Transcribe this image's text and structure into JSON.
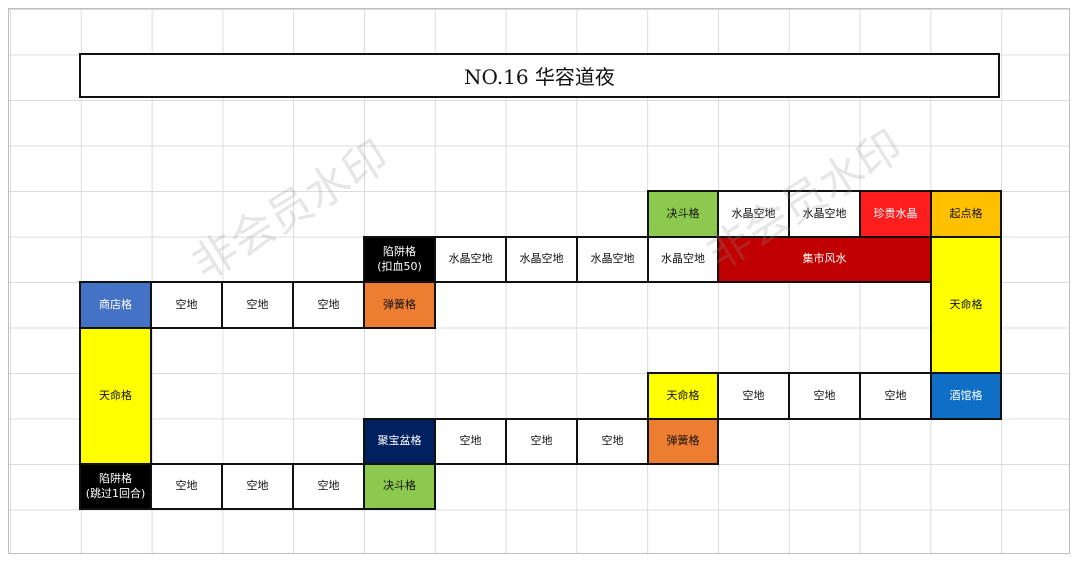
{
  "title": "NO.16 华容道夜",
  "watermark": "非会员水印",
  "colors": {
    "white": "#ffffff",
    "black": "#000000",
    "green": "#8dc94e",
    "red": "#ff1d1d",
    "dark_red": "#c00000",
    "orange_gold": "#ffc000",
    "yellow": "#ffff00",
    "blue": "#4472c4",
    "orange": "#ed7d31",
    "navy": "#002060",
    "tavern_blue": "#0f6fc6"
  },
  "cells": [
    {
      "text": "决斗格",
      "color": "green"
    },
    {
      "text": "水晶空地",
      "color": "white"
    },
    {
      "text": "水晶空地",
      "color": "white"
    },
    {
      "text": "珍贵水晶",
      "color": "red"
    },
    {
      "text": "起点格",
      "color": "orange_gold"
    },
    {
      "text": "陷阱格\n(扣血50)",
      "color": "black"
    },
    {
      "text": "水晶空地",
      "color": "white"
    },
    {
      "text": "水晶空地",
      "color": "white"
    },
    {
      "text": "水晶空地",
      "color": "white"
    },
    {
      "text": "水晶空地",
      "color": "white"
    },
    {
      "text": "集市风水",
      "color": "dark_red"
    },
    {
      "text": "天命格",
      "color": "yellow"
    },
    {
      "text": "商店格",
      "color": "blue"
    },
    {
      "text": "空地",
      "color": "white"
    },
    {
      "text": "空地",
      "color": "white"
    },
    {
      "text": "空地",
      "color": "white"
    },
    {
      "text": "弹簧格",
      "color": "orange"
    },
    {
      "text": "天命格",
      "color": "yellow"
    },
    {
      "text": "天命格",
      "color": "yellow"
    },
    {
      "text": "空地",
      "color": "white"
    },
    {
      "text": "空地",
      "color": "white"
    },
    {
      "text": "空地",
      "color": "white"
    },
    {
      "text": "酒馆格",
      "color": "tavern_blue"
    },
    {
      "text": "聚宝盆格",
      "color": "navy"
    },
    {
      "text": "空地",
      "color": "white"
    },
    {
      "text": "空地",
      "color": "white"
    },
    {
      "text": "空地",
      "color": "white"
    },
    {
      "text": "弹簧格",
      "color": "orange"
    },
    {
      "text": "陷阱格\n(跳过1回合)",
      "color": "black"
    },
    {
      "text": "空地",
      "color": "white"
    },
    {
      "text": "空地",
      "color": "white"
    },
    {
      "text": "空地",
      "color": "white"
    },
    {
      "text": "决斗格",
      "color": "green"
    }
  ]
}
